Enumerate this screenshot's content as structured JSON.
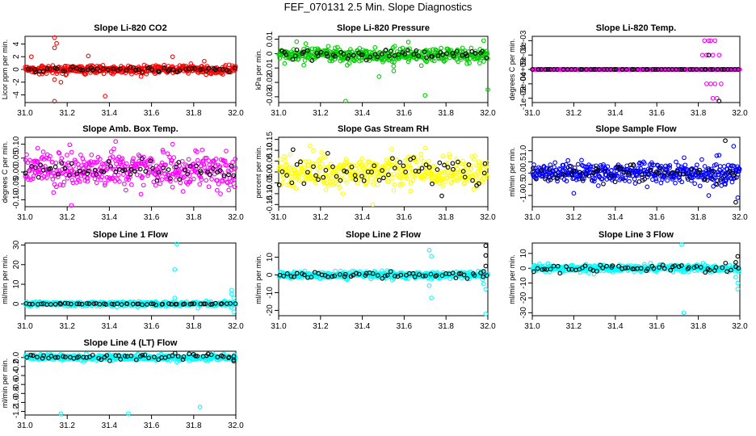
{
  "figure": {
    "title": "FEF_070131  2.5 Min. Slope Diagnostics"
  },
  "chart_data": [
    {
      "id": "co2",
      "type": "scatter",
      "title": "Slope Li-820 CO2",
      "ylabel": "Licor ppm per min.",
      "xlim": [
        31.0,
        32.0
      ],
      "ylim": [
        -5.2,
        5.2
      ],
      "x_ticks": [
        31.0,
        31.2,
        31.4,
        31.6,
        31.8,
        32.0
      ],
      "y_ticks": [
        -4,
        -2,
        0,
        2,
        4
      ],
      "series": [
        {
          "name": "primary",
          "color": "#ff0000",
          "n": 420,
          "center": 0,
          "spread": 0.35,
          "outliers": [
            [
              31.14,
              5.0
            ],
            [
              31.15,
              4.1
            ],
            [
              31.14,
              3.4
            ],
            [
              31.03,
              2.0
            ],
            [
              31.3,
              2.1
            ],
            [
              31.7,
              2.0
            ],
            [
              31.14,
              -1.6
            ],
            [
              31.17,
              -2.0
            ],
            [
              31.38,
              -4.2
            ],
            [
              31.14,
              -5.0
            ],
            [
              31.55,
              -1.1
            ],
            [
              31.85,
              1.3
            ]
          ]
        },
        {
          "name": "secondary",
          "color": "#000000",
          "n": 60,
          "center": 0,
          "spread": 0.18,
          "outliers": []
        }
      ]
    },
    {
      "id": "pressure",
      "type": "scatter",
      "title": "Slope Li-820 Pressure",
      "ylabel": "kPa per min.",
      "xlim": [
        31.0,
        32.0
      ],
      "ylim": [
        -0.034,
        0.012
      ],
      "x_ticks": [
        31.0,
        31.2,
        31.4,
        31.6,
        31.8,
        32.0
      ],
      "y_ticks": [
        -0.03,
        -0.02,
        -0.01,
        0.0,
        0.01
      ],
      "series": [
        {
          "name": "primary",
          "color": "#00cc00",
          "n": 420,
          "center": -0.001,
          "spread": 0.0025,
          "outliers": [
            [
              31.32,
              -0.033
            ],
            [
              31.7,
              -0.029
            ],
            [
              32.0,
              -0.025
            ],
            [
              31.48,
              -0.016
            ],
            [
              31.62,
              0.008
            ],
            [
              31.98,
              0.009
            ],
            [
              31.27,
              0.004
            ],
            [
              31.55,
              -0.012
            ],
            [
              31.12,
              -0.008
            ],
            [
              31.9,
              -0.007
            ]
          ]
        },
        {
          "name": "secondary",
          "color": "#000000",
          "n": 60,
          "center": -0.001,
          "spread": 0.0015,
          "outliers": []
        }
      ]
    },
    {
      "id": "temp",
      "type": "scatter",
      "title": "Slope Li-820 Temp.",
      "ylabel": "degrees C per min.",
      "xlim": [
        31.0,
        32.0
      ],
      "ylim": [
        -0.00115,
        0.00115
      ],
      "x_ticks": [
        31.0,
        31.2,
        31.4,
        31.6,
        31.8,
        32.0
      ],
      "y_ticks": [
        -0.001,
        -0.0005,
        0.0,
        0.0005,
        0.001
      ],
      "y_tick_labels": [
        "-1e-03",
        "-5e-04",
        "0e+00",
        "5e-04",
        "1e-03"
      ],
      "series": [
        {
          "name": "primary",
          "color": "#ff00ff",
          "n": 300,
          "center": 0,
          "spread": 0,
          "outliers": [
            [
              31.83,
              0.001
            ],
            [
              31.85,
              0.001
            ],
            [
              31.86,
              0.001
            ],
            [
              31.88,
              0.001
            ],
            [
              31.84,
              0.0005
            ],
            [
              31.87,
              0.0005
            ],
            [
              31.9,
              0.0005
            ],
            [
              31.82,
              0.0005
            ],
            [
              31.86,
              -0.0005
            ],
            [
              31.88,
              -0.0005
            ],
            [
              31.84,
              -0.0005
            ],
            [
              31.91,
              -0.0005
            ],
            [
              31.87,
              -0.001
            ],
            [
              31.89,
              -0.001
            ]
          ]
        },
        {
          "name": "secondary",
          "color": "#000000",
          "n": 60,
          "center": 0,
          "spread": 0,
          "outliers": [
            [
              31.9,
              -0.0011
            ],
            [
              31.85,
              0.0005
            ]
          ]
        }
      ]
    },
    {
      "id": "ambtemp",
      "type": "scatter",
      "title": "Slope Amb. Box Temp.",
      "ylabel": "degrees C per min.",
      "xlim": [
        31.0,
        32.0
      ],
      "ylim": [
        -0.125,
        0.125
      ],
      "x_ticks": [
        31.0,
        31.2,
        31.4,
        31.6,
        31.8,
        32.0
      ],
      "y_ticks": [
        -0.1,
        -0.05,
        0.0,
        0.05,
        0.1
      ],
      "y_tick_labels": [
        "-0.10",
        "-0.05",
        "0.00",
        "0.05",
        "0.10"
      ],
      "series": [
        {
          "name": "primary",
          "color": "#ff00ff",
          "n": 420,
          "center": 0.01,
          "spread": 0.03,
          "outliers": [
            [
              31.22,
              -0.12
            ],
            [
              31.43,
              0.11
            ],
            [
              31.7,
              0.1
            ],
            [
              31.55,
              -0.08
            ]
          ]
        },
        {
          "name": "secondary",
          "color": "#000000",
          "n": 60,
          "center": 0.01,
          "spread": 0.018,
          "outliers": []
        }
      ]
    },
    {
      "id": "gasrh",
      "type": "scatter",
      "title": "Slope Gas Stream RH",
      "ylabel": "percent per min.",
      "xlim": [
        31.0,
        32.0
      ],
      "ylim": [
        -0.16,
        0.16
      ],
      "x_ticks": [
        31.0,
        31.2,
        31.4,
        31.6,
        31.8,
        32.0
      ],
      "y_ticks": [
        -0.15,
        -0.1,
        -0.05,
        0.0,
        0.05,
        0.1,
        0.15
      ],
      "y_tick_labels": [
        "-0.15",
        "-0.10",
        "-0.05",
        "0.00",
        "0.05",
        "0.10",
        "0.15"
      ],
      "series": [
        {
          "name": "primary",
          "color": "#ffff00",
          "n": 420,
          "center": 0.0,
          "spread": 0.035,
          "outliers": [
            [
              31.45,
              -0.15
            ],
            [
              31.7,
              0.11
            ],
            [
              31.15,
              0.12
            ]
          ]
        },
        {
          "name": "secondary",
          "color": "#000000",
          "n": 60,
          "center": 0.0,
          "spread": 0.035,
          "outliers": [
            [
              31.78,
              -0.11
            ]
          ]
        }
      ]
    },
    {
      "id": "sampleflow",
      "type": "scatter",
      "title": "Slope Sample Flow",
      "ylabel": "ml/min per min.",
      "xlim": [
        31.0,
        32.0
      ],
      "ylim": [
        -1.5,
        1.6
      ],
      "x_ticks": [
        31.0,
        31.2,
        31.4,
        31.6,
        31.8,
        32.0
      ],
      "y_ticks": [
        -1.0,
        -0.5,
        0.0,
        0.5,
        1.0
      ],
      "y_tick_labels": [
        "-1.0",
        "-0.5",
        "0.0",
        "0.5",
        "1.0"
      ],
      "series": [
        {
          "name": "primary",
          "color": "#0000ff",
          "n": 420,
          "center": 0.0,
          "spread": 0.22,
          "outliers": [
            [
              31.97,
              1.2
            ],
            [
              31.93,
              -0.5
            ],
            [
              31.2,
              -0.9
            ],
            [
              31.85,
              -1.0
            ],
            [
              31.9,
              0.8
            ],
            [
              31.99,
              -1.1
            ]
          ]
        },
        {
          "name": "secondary",
          "color": "#000000",
          "n": 60,
          "center": 0.0,
          "spread": 0.22,
          "outliers": [
            [
              31.93,
              1.45
            ],
            [
              31.98,
              -1.3
            ]
          ]
        }
      ]
    },
    {
      "id": "line1",
      "type": "scatter",
      "title": "Slope Line 1 Flow",
      "ylabel": "ml/min per min.",
      "xlim": [
        31.0,
        32.0
      ],
      "ylim": [
        -6,
        31
      ],
      "x_ticks": [
        31.0,
        31.2,
        31.4,
        31.6,
        31.8,
        32.0
      ],
      "y_ticks": [
        0,
        10,
        20,
        30
      ],
      "series": [
        {
          "name": "primary",
          "color": "#00ffff",
          "n": 420,
          "center": 0,
          "spread": 0.6,
          "outliers": [
            [
              31.72,
              30.5
            ],
            [
              31.71,
              17.5
            ],
            [
              31.71,
              3.0
            ],
            [
              31.98,
              5.0
            ],
            [
              31.98,
              7.0
            ],
            [
              31.99,
              -4.0
            ],
            [
              31.99,
              3.0
            ]
          ]
        },
        {
          "name": "secondary",
          "color": "#000000",
          "n": 60,
          "center": 0,
          "spread": 0.2,
          "outliers": []
        }
      ]
    },
    {
      "id": "line2",
      "type": "scatter",
      "title": "Slope Line 2 Flow",
      "ylabel": "ml/min per min.",
      "xlim": [
        31.0,
        32.0
      ],
      "ylim": [
        -23,
        18
      ],
      "x_ticks": [
        31.0,
        31.2,
        31.4,
        31.6,
        31.8,
        32.0
      ],
      "y_ticks": [
        -20,
        -10,
        0,
        10
      ],
      "series": [
        {
          "name": "primary",
          "color": "#00ffff",
          "n": 420,
          "center": 0,
          "spread": 1.0,
          "outliers": [
            [
              31.72,
              14.0
            ],
            [
              31.73,
              10.5
            ],
            [
              31.72,
              -6.0
            ],
            [
              31.73,
              -13.0
            ],
            [
              31.99,
              -22.0
            ],
            [
              31.98,
              -5.0
            ],
            [
              31.99,
              -8.0
            ]
          ]
        },
        {
          "name": "secondary",
          "color": "#000000",
          "n": 60,
          "center": 0,
          "spread": 1.0,
          "outliers": [
            [
              31.99,
              16.5
            ],
            [
              31.99,
              11.0
            ],
            [
              31.99,
              5.0
            ],
            [
              31.98,
              2.0
            ]
          ]
        }
      ]
    },
    {
      "id": "line3",
      "type": "scatter",
      "title": "Slope Line 3 Flow",
      "ylabel": "ml/min per min.",
      "xlim": [
        31.0,
        32.0
      ],
      "ylim": [
        -32,
        17
      ],
      "x_ticks": [
        31.0,
        31.2,
        31.4,
        31.6,
        31.8,
        32.0
      ],
      "y_ticks": [
        -30,
        -20,
        -10,
        0,
        10
      ],
      "series": [
        {
          "name": "primary",
          "color": "#00ffff",
          "n": 420,
          "center": 0,
          "spread": 1.2,
          "outliers": [
            [
              31.73,
              -30.0
            ],
            [
              31.72,
              16.0
            ],
            [
              31.99,
              -10.0
            ],
            [
              31.99,
              -14.0
            ],
            [
              31.98,
              -6.0
            ]
          ]
        },
        {
          "name": "secondary",
          "color": "#000000",
          "n": 60,
          "center": 0,
          "spread": 1.2,
          "outliers": [
            [
              31.99,
              8.0
            ],
            [
              31.98,
              4.0
            ]
          ]
        }
      ]
    },
    {
      "id": "line4",
      "type": "scatter",
      "title": "Slope Line 4 (LT) Flow",
      "ylabel": "ml/min per min.",
      "xlim": [
        31.0,
        32.0
      ],
      "ylim": [
        -1.28,
        0.14
      ],
      "x_ticks": [
        31.0,
        31.2,
        31.4,
        31.6,
        31.8,
        32.0
      ],
      "y_ticks": [
        -1.2,
        -1.0,
        -0.8,
        -0.6,
        -0.4,
        -0.2,
        0.0
      ],
      "y_tick_labels": [
        "-1.2",
        "-1.0",
        "-0.8",
        "-0.6",
        "-0.4",
        "-0.2",
        "0.0"
      ],
      "series": [
        {
          "name": "primary",
          "color": "#00ffff",
          "n": 420,
          "center": 0.0,
          "spread": 0.03,
          "outliers": [
            [
              31.17,
              -1.25
            ],
            [
              31.49,
              -1.25
            ],
            [
              31.83,
              -1.1
            ],
            [
              31.72,
              -0.1
            ]
          ]
        },
        {
          "name": "secondary",
          "color": "#000000",
          "n": 60,
          "center": 0.02,
          "spread": 0.03,
          "outliers": [
            [
              31.99,
              -0.08
            ],
            [
              31.99,
              -0.05
            ]
          ]
        }
      ]
    }
  ]
}
